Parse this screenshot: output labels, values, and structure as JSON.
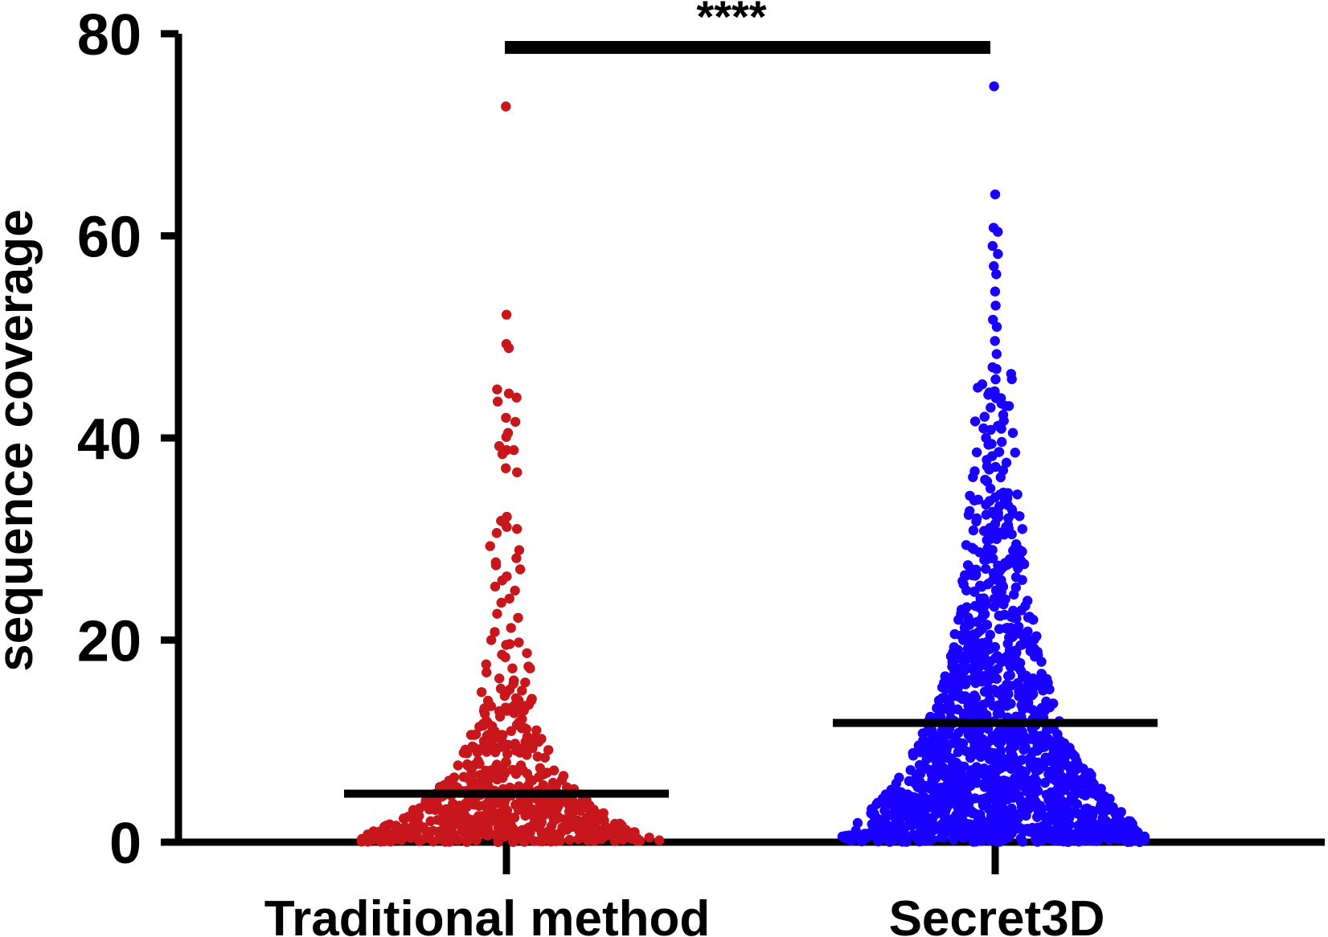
{
  "chart_data": {
    "type": "scatter",
    "subtype": "beeswarm-dot-plot",
    "ylabel": "sequence coverage",
    "ylim": [
      0,
      80
    ],
    "yticks": [
      0,
      20,
      40,
      60,
      80
    ],
    "categories": [
      "Traditional method",
      "Secret3D"
    ],
    "series": [
      {
        "name": "Traditional method",
        "color": "#c8161d",
        "median": 4.8,
        "max": 72.8,
        "notable_values": [
          72.8,
          52.2,
          49.3,
          48.9,
          44.8,
          44.0,
          42.0,
          40.5,
          39.2,
          38.8,
          37.0,
          32.2,
          31.6,
          31.0,
          29.3,
          28.1,
          27.4,
          26.3,
          25.3,
          24.1,
          22.6,
          21.2,
          20.0,
          18.7,
          17.6,
          17.2,
          16.2,
          15.1,
          14.0,
          13.1,
          12.0,
          11.0,
          10.0
        ],
        "bulk_range": [
          0,
          9
        ]
      },
      {
        "name": "Secret3D",
        "color": "#1a00ff",
        "median": 11.8,
        "max": 74.8,
        "notable_values": [
          74.8,
          64.1,
          60.8,
          60.4,
          59.0,
          58.2,
          57.0,
          56.2,
          54.5,
          53.1,
          51.7,
          51.0,
          49.6,
          48.3,
          47.0,
          45.8,
          44.5,
          43.4,
          42.1,
          41.2,
          40.0,
          38.6,
          37.2,
          36.1,
          35.0,
          33.8,
          32.7,
          31.5,
          30.4,
          29.1,
          28.0,
          26.8,
          25.6,
          24.5,
          23.3,
          22.2
        ],
        "bulk_range": [
          0,
          22
        ]
      }
    ],
    "comparison": {
      "groups": [
        "Traditional method",
        "Secret3D"
      ],
      "significance": "****"
    },
    "grid": false,
    "legend": "none"
  }
}
